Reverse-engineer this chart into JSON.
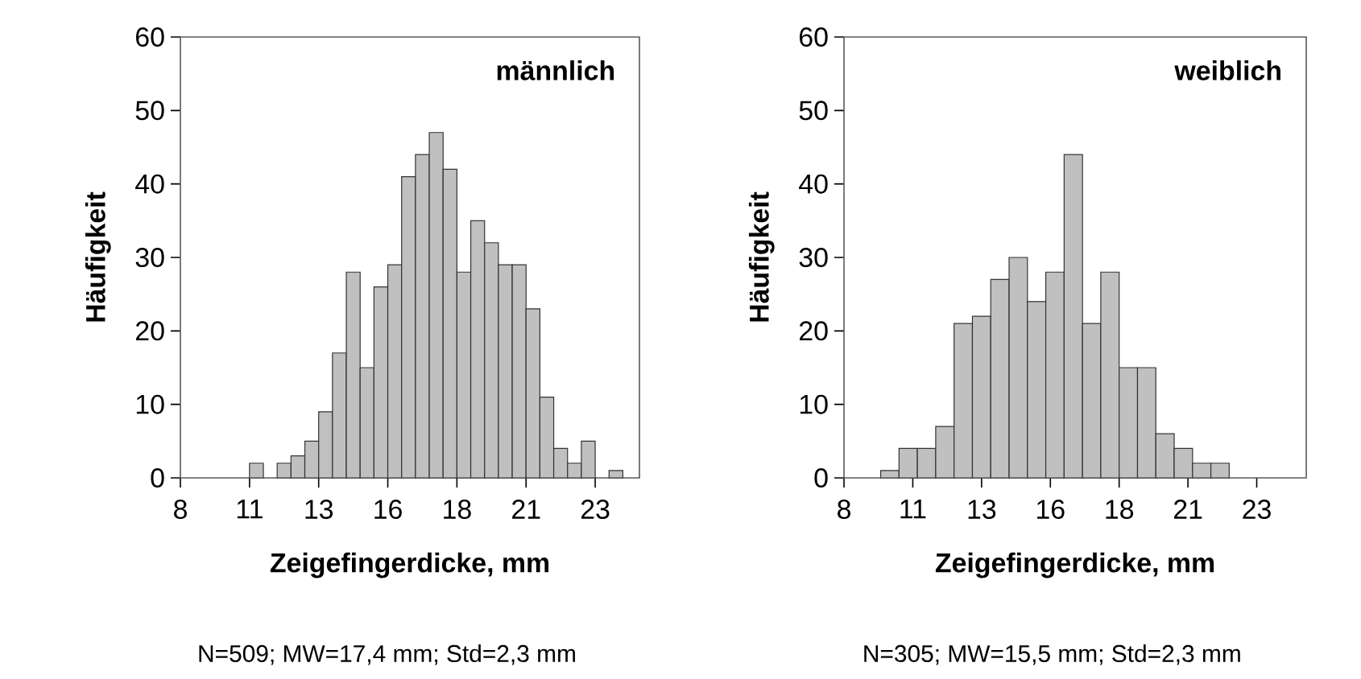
{
  "chart_data": [
    {
      "type": "histogram",
      "title": "männlich",
      "xlabel": "Zeigefingerdicke, mm",
      "ylabel": "Häufigkeit",
      "color": "#c0c0c0",
      "bins": [
        10.5,
        11,
        11.5,
        12,
        12.5,
        13,
        13.5,
        14,
        14.5,
        15,
        15.5,
        16,
        16.5,
        17,
        17.5,
        18,
        18.5,
        19,
        19.5,
        20,
        20.5,
        21,
        21.5,
        22,
        22.5,
        23,
        23.5,
        24
      ],
      "values": [
        2,
        0,
        2,
        3,
        5,
        9,
        17,
        28,
        15,
        26,
        29,
        41,
        44,
        47,
        42,
        28,
        35,
        32,
        29,
        29,
        23,
        11,
        4,
        2,
        5,
        0,
        1
      ],
      "xlim": [
        8,
        24.6
      ],
      "ylim": [
        0,
        60
      ],
      "xticks": [
        8,
        {
          "value": 10.5,
          "label": "11"
        },
        13,
        {
          "value": 15.5,
          "label": "16"
        },
        18,
        {
          "value": 20.5,
          "label": "21"
        },
        23
      ],
      "yticks": [
        0,
        10,
        20,
        30,
        40,
        50,
        60
      ],
      "annotations": [
        "N=509; MW=17,4 mm; Std=2,3 mm"
      ]
    },
    {
      "type": "histogram",
      "title": "weiblich",
      "xlabel": "Zeigefingerdicke, mm",
      "ylabel": "Häufigkeit",
      "color": "#c0c0c0",
      "bins": [
        9.333,
        10,
        10.667,
        11.333,
        12,
        12.667,
        13.333,
        14,
        14.667,
        15.333,
        16,
        16.667,
        17.333,
        18,
        18.667,
        19.333,
        20,
        20.667,
        21.333,
        22
      ],
      "values": [
        1,
        4,
        4,
        7,
        21,
        22,
        27,
        30,
        24,
        28,
        44,
        21,
        28,
        15,
        15,
        6,
        4,
        2,
        2
      ],
      "xlim": [
        8,
        24.8
      ],
      "ylim": [
        0,
        60
      ],
      "xticks": [
        8,
        {
          "value": 10.5,
          "label": "11"
        },
        13,
        {
          "value": 15.5,
          "label": "16"
        },
        18,
        {
          "value": 20.5,
          "label": "21"
        },
        23
      ],
      "yticks": [
        0,
        10,
        20,
        30,
        40,
        50,
        60
      ],
      "annotations": [
        "N=305; MW=15,5 mm; Std=2,3 mm"
      ]
    }
  ]
}
